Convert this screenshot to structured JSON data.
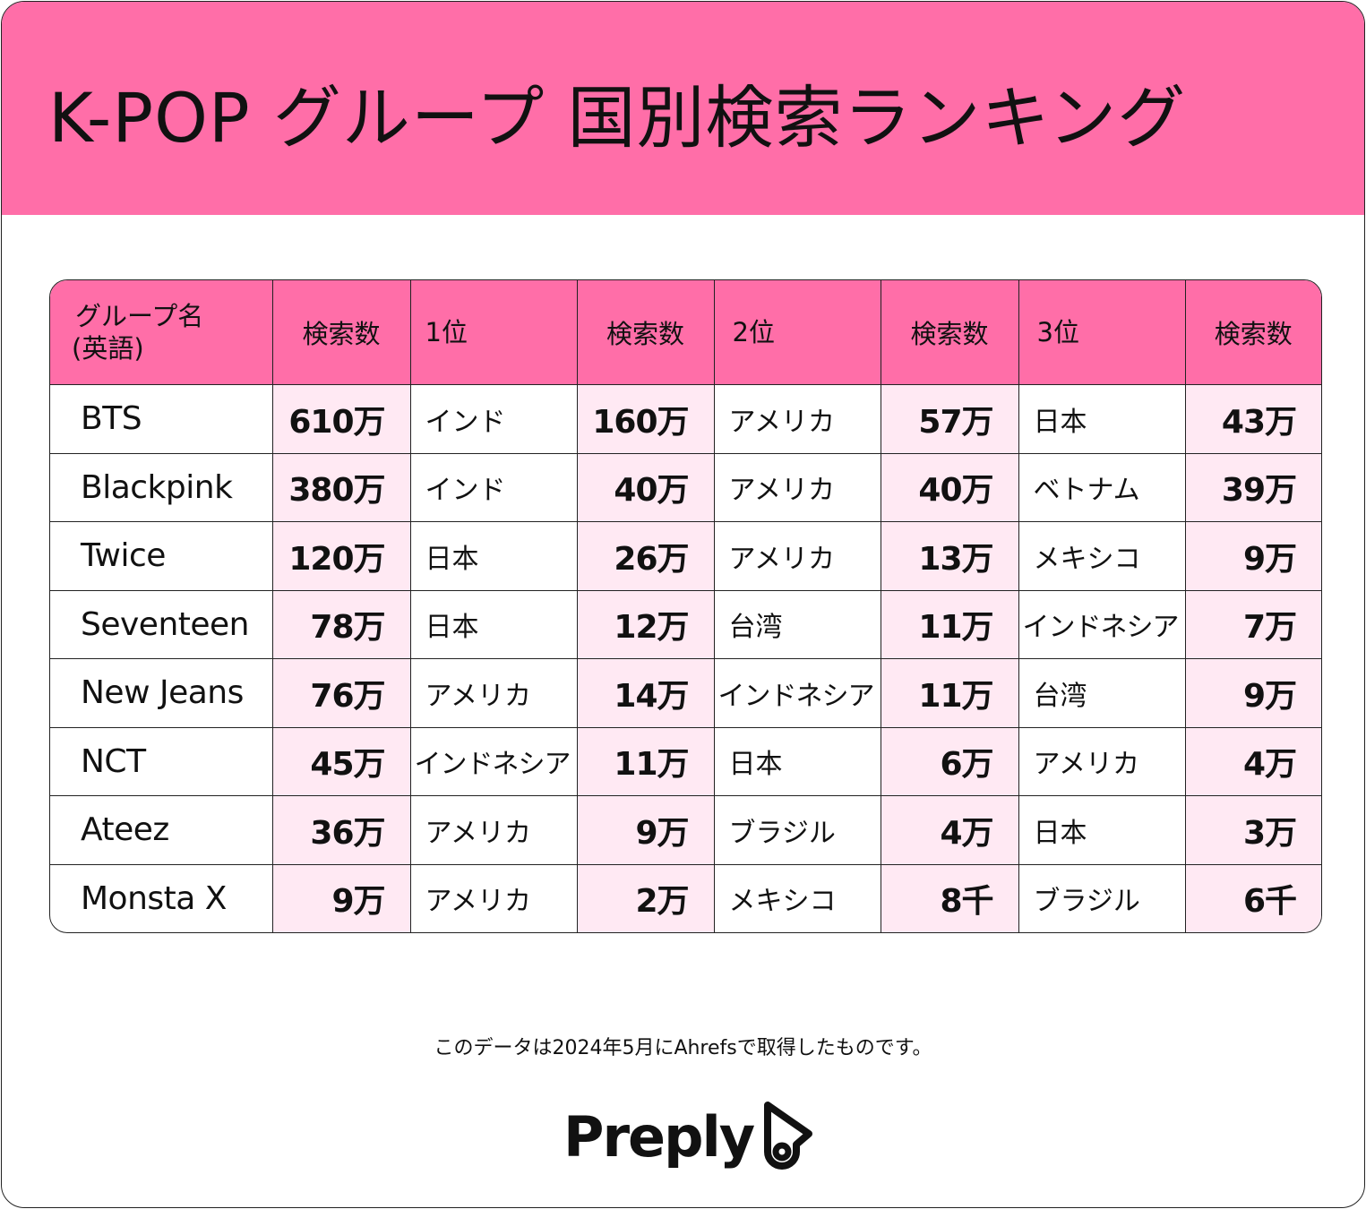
{
  "title": "K-POP グループ 国別検索ランキング",
  "chart_data": {
    "type": "table",
    "title": "K-POP グループ 国別検索ランキング",
    "columns": [
      "グループ名\n(英語)",
      "検索数",
      "1位",
      "検索数",
      "2位",
      "検索数",
      "3位",
      "検索数"
    ],
    "header": {
      "group_line1": "グループ名",
      "group_line2": "(英語)",
      "searches": "検索数",
      "rank1": "1位",
      "rank1_searches": "検索数",
      "rank2": "2位",
      "rank2_searches": "検索数",
      "rank3": "3位",
      "rank3_searches": "検索数"
    },
    "rows": [
      {
        "group": "BTS",
        "total": "610万",
        "c1": "インド",
        "v1": "160万",
        "c2": "アメリカ",
        "v2": "57万",
        "c3": "日本",
        "v3": "43万"
      },
      {
        "group": "Blackpink",
        "total": "380万",
        "c1": "インド",
        "v1": "40万",
        "c2": "アメリカ",
        "v2": "40万",
        "c3": "ベトナム",
        "v3": "39万"
      },
      {
        "group": "Twice",
        "total": "120万",
        "c1": "日本",
        "v1": "26万",
        "c2": "アメリカ",
        "v2": "13万",
        "c3": "メキシコ",
        "v3": "9万"
      },
      {
        "group": "Seventeen",
        "total": "78万",
        "c1": "日本",
        "v1": "12万",
        "c2": "台湾",
        "v2": "11万",
        "c3": "インドネシア",
        "v3": "7万"
      },
      {
        "group": "New Jeans",
        "total": "76万",
        "c1": "アメリカ",
        "v1": "14万",
        "c2": "インドネシア",
        "v2": "11万",
        "c3": "台湾",
        "v3": "9万"
      },
      {
        "group": "NCT",
        "total": "45万",
        "c1": "インドネシア",
        "v1": "11万",
        "c2": "日本",
        "v2": "6万",
        "c3": "アメリカ",
        "v3": "4万"
      },
      {
        "group": "Ateez",
        "total": "36万",
        "c1": "アメリカ",
        "v1": "9万",
        "c2": "ブラジル",
        "v2": "4万",
        "c3": "日本",
        "v3": "3万"
      },
      {
        "group": "Monsta X",
        "total": "9万",
        "c1": "アメリカ",
        "v1": "2万",
        "c2": "メキシコ",
        "v2": "8千",
        "c3": "ブラジル",
        "v3": "6千"
      }
    ]
  },
  "footnote": "このデータは2024年5月にAhrefsで取得したものです。",
  "brand": {
    "name": "Preply",
    "icon": "preply-hat-icon"
  },
  "colors": {
    "accent_pink": "#ff6ea8",
    "cell_pink": "#ffe9f3",
    "text": "#111111",
    "border": "#222222"
  }
}
